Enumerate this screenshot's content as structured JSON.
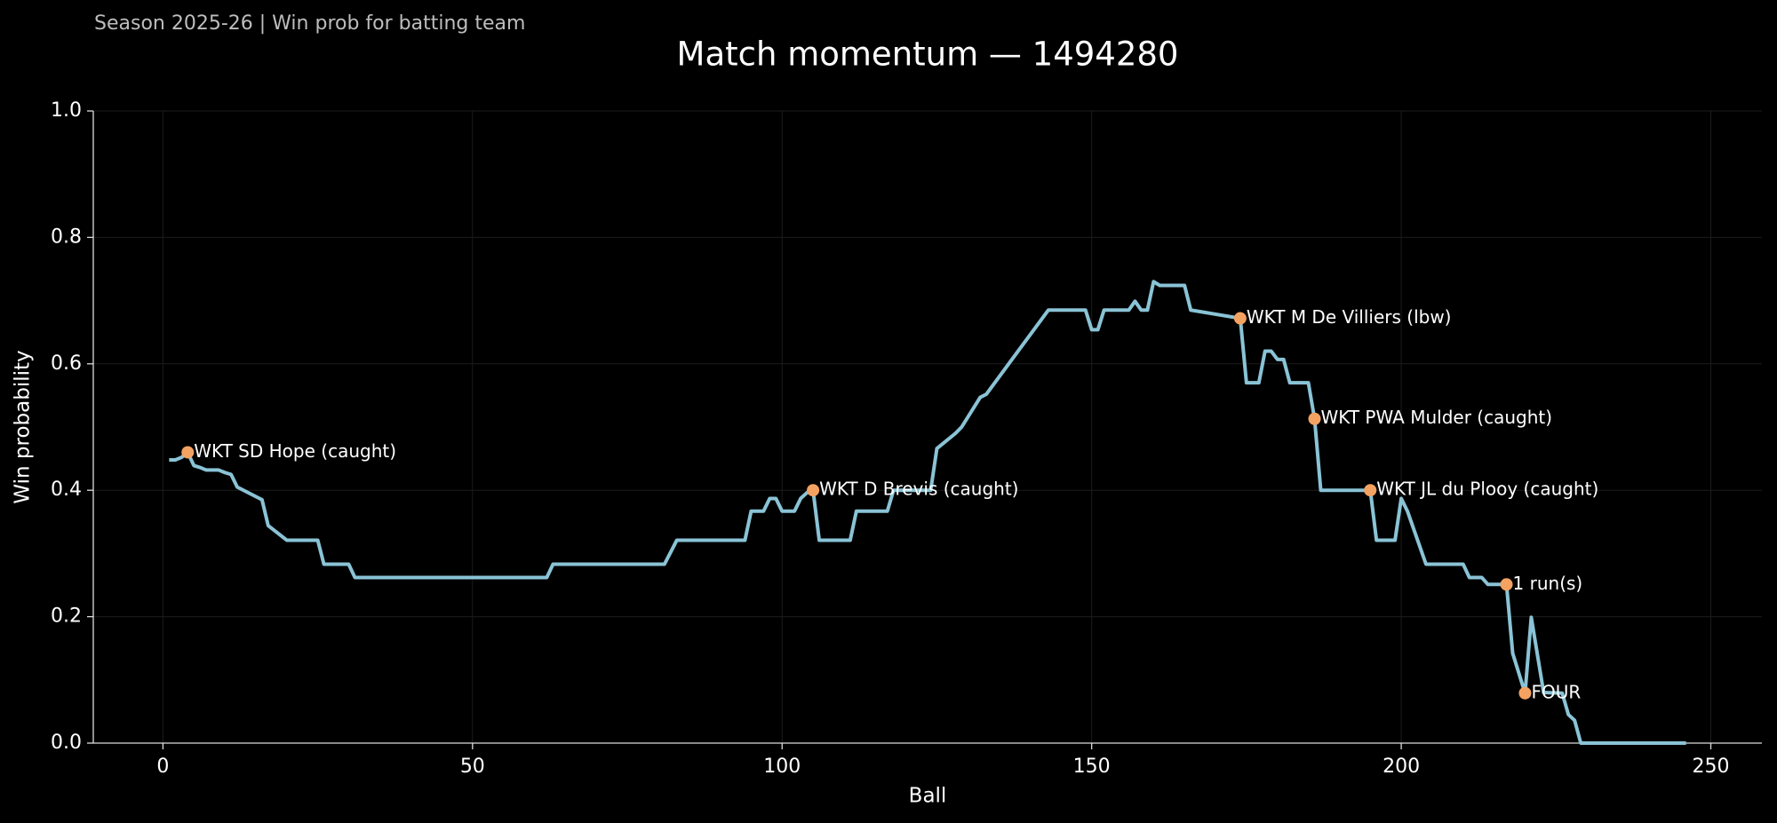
{
  "chart_data": {
    "type": "line",
    "subtitle": "Season 2025-26 | Win prob for batting team",
    "title": "Match momentum — 1494280",
    "xlabel": "Ball",
    "ylabel": "Win probability",
    "x": [
      1,
      2,
      3,
      4,
      5,
      6,
      7,
      9,
      10,
      11,
      12,
      16,
      17,
      20,
      25,
      26,
      30,
      31,
      62,
      63,
      81,
      83,
      94,
      95,
      97,
      98,
      99,
      100,
      102,
      103,
      104,
      105,
      106,
      111,
      112,
      117,
      118,
      124,
      125,
      128,
      129,
      132,
      133,
      143,
      149,
      150,
      151,
      152,
      156,
      157,
      158,
      159,
      160,
      161,
      165,
      166,
      174,
      175,
      177,
      178,
      179,
      180,
      181,
      182,
      185,
      186,
      187,
      195,
      196,
      199,
      200,
      201,
      204,
      210,
      211,
      213,
      214,
      217,
      218,
      220,
      221,
      223,
      226,
      227,
      228,
      229,
      246
    ],
    "series": [
      {
        "name": "Win probability",
        "color": "#8ac3d6",
        "values": [
          0.448,
          0.448,
          0.452,
          0.46,
          0.439,
          0.436,
          0.432,
          0.432,
          0.428,
          0.425,
          0.405,
          0.385,
          0.344,
          0.321,
          0.321,
          0.283,
          0.283,
          0.262,
          0.262,
          0.283,
          0.283,
          0.321,
          0.321,
          0.367,
          0.367,
          0.387,
          0.387,
          0.367,
          0.367,
          0.387,
          0.396,
          0.4,
          0.321,
          0.321,
          0.367,
          0.367,
          0.4,
          0.4,
          0.466,
          0.49,
          0.5,
          0.547,
          0.552,
          0.685,
          0.685,
          0.654,
          0.654,
          0.685,
          0.685,
          0.699,
          0.685,
          0.685,
          0.73,
          0.724,
          0.724,
          0.685,
          0.672,
          0.57,
          0.57,
          0.62,
          0.62,
          0.607,
          0.607,
          0.57,
          0.57,
          0.513,
          0.4,
          0.4,
          0.321,
          0.321,
          0.387,
          0.367,
          0.283,
          0.283,
          0.262,
          0.262,
          0.251,
          0.251,
          0.142,
          0.079,
          0.199,
          0.08,
          0.079,
          0.045,
          0.036,
          0,
          0
        ]
      }
    ],
    "annotations": [
      {
        "x": 4,
        "y": 0.46,
        "label": "WKT SD Hope (caught)"
      },
      {
        "x": 105,
        "y": 0.4,
        "label": "WKT D Brevis (caught)"
      },
      {
        "x": 174,
        "y": 0.672,
        "label": "WKT M De Villiers (lbw)"
      },
      {
        "x": 186,
        "y": 0.513,
        "label": "WKT PWA Mulder (caught)"
      },
      {
        "x": 195,
        "y": 0.4,
        "label": "WKT JL du Plooy (caught)"
      },
      {
        "x": 217,
        "y": 0.251,
        "label": "1 run(s)"
      },
      {
        "x": 220,
        "y": 0.079,
        "label": "FOUR"
      }
    ],
    "marker_color": "#f4a261",
    "xlim": [
      -11.25,
      258.25
    ],
    "ylim": [
      0,
      1
    ],
    "xticks": [
      0,
      50,
      100,
      150,
      200,
      250
    ],
    "yticks": [
      {
        "value": 0,
        "label": "0.0"
      },
      0.2,
      0.4,
      0.6,
      0.8,
      {
        "value": 1,
        "label": "1.0"
      }
    ],
    "grid": true
  }
}
